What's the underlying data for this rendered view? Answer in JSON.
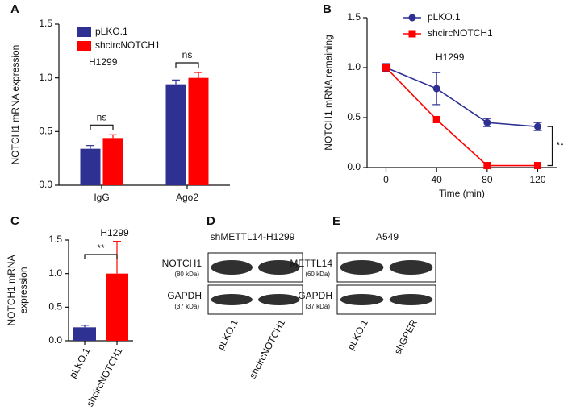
{
  "chart_data": [
    {
      "panel": "A",
      "type": "bar",
      "ylabel": "NOTCH1 mRNA expression",
      "subtitle": "H1299",
      "categories": [
        "IgG",
        "Ago2"
      ],
      "series": [
        {
          "name": "pLKO.1",
          "color": "#2e3192",
          "values": [
            0.34,
            0.94
          ],
          "errors": [
            0.03,
            0.04
          ]
        },
        {
          "name": "shcircNOTCH1",
          "color": "#ff0000",
          "values": [
            0.44,
            1.0
          ],
          "errors": [
            0.03,
            0.05
          ]
        }
      ],
      "annotations": [
        "ns",
        "ns"
      ],
      "ylim": [
        0,
        1.5
      ],
      "yticks": [
        {
          "value": 0,
          "label": "0.0"
        },
        {
          "value": 0.5,
          "label": "0.5"
        },
        {
          "value": 1,
          "label": "1.0"
        },
        {
          "value": 1.5,
          "label": "1.5"
        }
      ]
    },
    {
      "panel": "B",
      "type": "line",
      "ylabel": "NOTCH1 mRNA remaining",
      "xlabel": "Time (min)",
      "subtitle": "H1299",
      "x": [
        0,
        40,
        80,
        120
      ],
      "series": [
        {
          "name": "pLKO.1",
          "color": "#2e3192",
          "marker": "circle",
          "values": [
            1.0,
            0.79,
            0.45,
            0.41
          ],
          "errors": [
            0.04,
            0.16,
            0.04,
            0.04
          ]
        },
        {
          "name": "shcircNOTCH1",
          "color": "#ff0000",
          "marker": "square",
          "values": [
            1.0,
            0.48,
            0.02,
            0.02
          ],
          "errors": [
            0.03,
            0,
            0,
            0
          ]
        }
      ],
      "annotations": [
        "**"
      ],
      "xlim": [
        -15,
        135
      ],
      "xticks": [
        0,
        40,
        80,
        120
      ],
      "ylim": [
        0,
        1.5
      ],
      "yticks": [
        {
          "value": 0,
          "label": "0.0"
        },
        {
          "value": 0.5,
          "label": "0.5"
        },
        {
          "value": 1,
          "label": "1.0"
        },
        {
          "value": 1.5,
          "label": "1.5"
        }
      ]
    },
    {
      "panel": "C",
      "type": "bar",
      "ylabel": "NOTCH1 mRNA expression",
      "title": "H1299",
      "categories": [
        "pLKO.1",
        "shcircNOTCH1"
      ],
      "values": [
        0.2,
        1.0
      ],
      "errors": [
        0.03,
        0.48
      ],
      "colors": [
        "#2e3192",
        "#ff0000"
      ],
      "annotations": [
        "**"
      ],
      "ylim": [
        0,
        1.5
      ],
      "yticks": [
        {
          "value": 0,
          "label": "0.0"
        },
        {
          "value": 0.5,
          "label": "0.5"
        },
        {
          "value": 1,
          "label": "1.0"
        },
        {
          "value": 1.5,
          "label": "1.5"
        }
      ]
    }
  ],
  "blots": [
    {
      "panel": "D",
      "title": "shMETTL14-H1299",
      "rows": [
        {
          "label": "NOTCH1",
          "size": "(80 kDa)"
        },
        {
          "label": "GAPDH",
          "size": "(37 kDa)"
        }
      ],
      "lanes": [
        "pLKO.1",
        "shcircNOTCH1"
      ]
    },
    {
      "panel": "E",
      "title": "A549",
      "rows": [
        {
          "label": "METTL14",
          "size": "(60 kDa)"
        },
        {
          "label": "GAPDH",
          "size": "(37 kDa)"
        }
      ],
      "lanes": [
        "pLKO.1",
        "shGPER"
      ]
    }
  ]
}
